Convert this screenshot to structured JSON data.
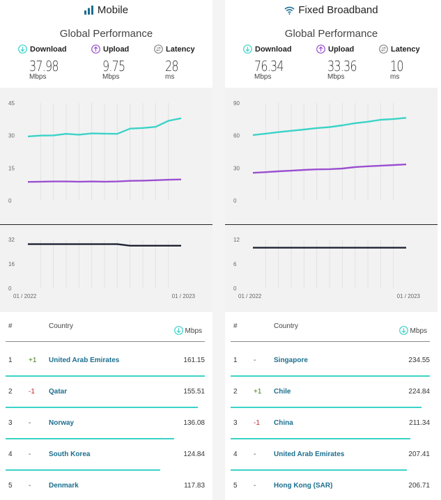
{
  "colors": {
    "download": "#3bd3c7",
    "upload": "#9b4fd1",
    "latency": "#1e2433",
    "link": "#1c6f8f",
    "up": "#3a7d1a",
    "down": "#c0242b"
  },
  "panels": [
    {
      "title": "Mobile",
      "icon": "signal-bars-icon",
      "subtitle": "Global Performance",
      "metrics": [
        {
          "label": "Download",
          "icon": "download-icon",
          "value": "37.98",
          "unit": "Mbps"
        },
        {
          "label": "Upload",
          "icon": "upload-icon",
          "value": "9.75",
          "unit": "Mbps"
        },
        {
          "label": "Latency",
          "icon": "latency-icon",
          "value": "28",
          "unit": "ms"
        }
      ],
      "table": {
        "col_rank": "#",
        "col_country": "Country",
        "col_speed": "Mbps",
        "rows": [
          {
            "rank": "1",
            "change": "+1",
            "country": "United Arab Emirates",
            "speed": "161.15",
            "speed_value": 161.15
          },
          {
            "rank": "2",
            "change": "-1",
            "country": "Qatar",
            "speed": "155.51",
            "speed_value": 155.51
          },
          {
            "rank": "3",
            "change": "-",
            "country": "Norway",
            "speed": "136.08",
            "speed_value": 136.08
          },
          {
            "rank": "4",
            "change": "-",
            "country": "South Korea",
            "speed": "124.84",
            "speed_value": 124.84
          },
          {
            "rank": "5",
            "change": "-",
            "country": "Denmark",
            "speed": "117.83",
            "speed_value": 117.83
          }
        ]
      }
    },
    {
      "title": "Fixed Broadband",
      "icon": "wifi-icon",
      "subtitle": "Global Performance",
      "metrics": [
        {
          "label": "Download",
          "icon": "download-icon",
          "value": "76.34",
          "unit": "Mbps"
        },
        {
          "label": "Upload",
          "icon": "upload-icon",
          "value": "33.36",
          "unit": "Mbps"
        },
        {
          "label": "Latency",
          "icon": "latency-icon",
          "value": "10",
          "unit": "ms"
        }
      ],
      "table": {
        "col_rank": "#",
        "col_country": "Country",
        "col_speed": "Mbps",
        "rows": [
          {
            "rank": "1",
            "change": "-",
            "country": "Singapore",
            "speed": "234.55",
            "speed_value": 234.55
          },
          {
            "rank": "2",
            "change": "+1",
            "country": "Chile",
            "speed": "224.84",
            "speed_value": 224.84
          },
          {
            "rank": "3",
            "change": "-1",
            "country": "China",
            "speed": "211.34",
            "speed_value": 211.34
          },
          {
            "rank": "4",
            "change": "-",
            "country": "United Arab Emirates",
            "speed": "207.41",
            "speed_value": 207.41
          },
          {
            "rank": "5",
            "change": "-",
            "country": "Hong Kong (SAR)",
            "speed": "206.71",
            "speed_value": 206.71
          }
        ]
      }
    }
  ],
  "chart_data": [
    {
      "type": "line",
      "panel": "Mobile",
      "x": [
        "01 / 2022",
        "02 / 2022",
        "03 / 2022",
        "04 / 2022",
        "05 / 2022",
        "06 / 2022",
        "07 / 2022",
        "08 / 2022",
        "09 / 2022",
        "10 / 2022",
        "11 / 2022",
        "12 / 2022",
        "01 / 2023"
      ],
      "xtick_labels": [
        "01 / 2022",
        "01 / 2023"
      ],
      "speed": {
        "ylim": [
          0,
          45
        ],
        "yticks": [
          0,
          15,
          30,
          45
        ],
        "series": [
          {
            "color": "#3bd3c7",
            "values": [
              29.6,
              30.0,
              30.1,
              30.8,
              30.4,
              31.0,
              30.9,
              30.8,
              33.2,
              33.5,
              34.0,
              36.8,
              37.98
            ]
          },
          {
            "color": "#9b4fd1",
            "values": [
              8.6,
              8.7,
              8.8,
              8.8,
              8.7,
              8.8,
              8.7,
              8.8,
              9.1,
              9.2,
              9.4,
              9.6,
              9.75
            ]
          }
        ]
      },
      "latency": {
        "ylim": [
          0,
          32
        ],
        "yticks": [
          0,
          16,
          32
        ],
        "series": [
          {
            "color": "#1e2433",
            "values": [
              29,
              29,
              29,
              29,
              29,
              29,
              29,
              29,
              28,
              28,
              28,
              28,
              28
            ]
          }
        ]
      }
    },
    {
      "type": "line",
      "panel": "Fixed Broadband",
      "x": [
        "01 / 2022",
        "02 / 2022",
        "03 / 2022",
        "04 / 2022",
        "05 / 2022",
        "06 / 2022",
        "07 / 2022",
        "08 / 2022",
        "09 / 2022",
        "10 / 2022",
        "11 / 2022",
        "12 / 2022",
        "01 / 2023"
      ],
      "xtick_labels": [
        "01 / 2022",
        "01 / 2023"
      ],
      "speed": {
        "ylim": [
          0,
          90
        ],
        "yticks": [
          0,
          30,
          60,
          90
        ],
        "series": [
          {
            "color": "#3bd3c7",
            "values": [
              60.5,
              61.8,
              63.2,
              64.4,
              65.6,
              66.9,
              67.8,
              69.4,
              71.4,
              72.8,
              74.6,
              75.3,
              76.34
            ]
          },
          {
            "color": "#9b4fd1",
            "values": [
              25.6,
              26.2,
              27.0,
              27.6,
              28.3,
              28.8,
              29.0,
              29.6,
              30.9,
              31.6,
              32.2,
              32.8,
              33.36
            ]
          }
        ]
      },
      "latency": {
        "ylim": [
          0,
          12
        ],
        "yticks": [
          0,
          6,
          12
        ],
        "series": [
          {
            "color": "#1e2433",
            "values": [
              10,
              10,
              10,
              10,
              10,
              10,
              10,
              10,
              10,
              10,
              10,
              10,
              10
            ]
          }
        ]
      }
    }
  ]
}
